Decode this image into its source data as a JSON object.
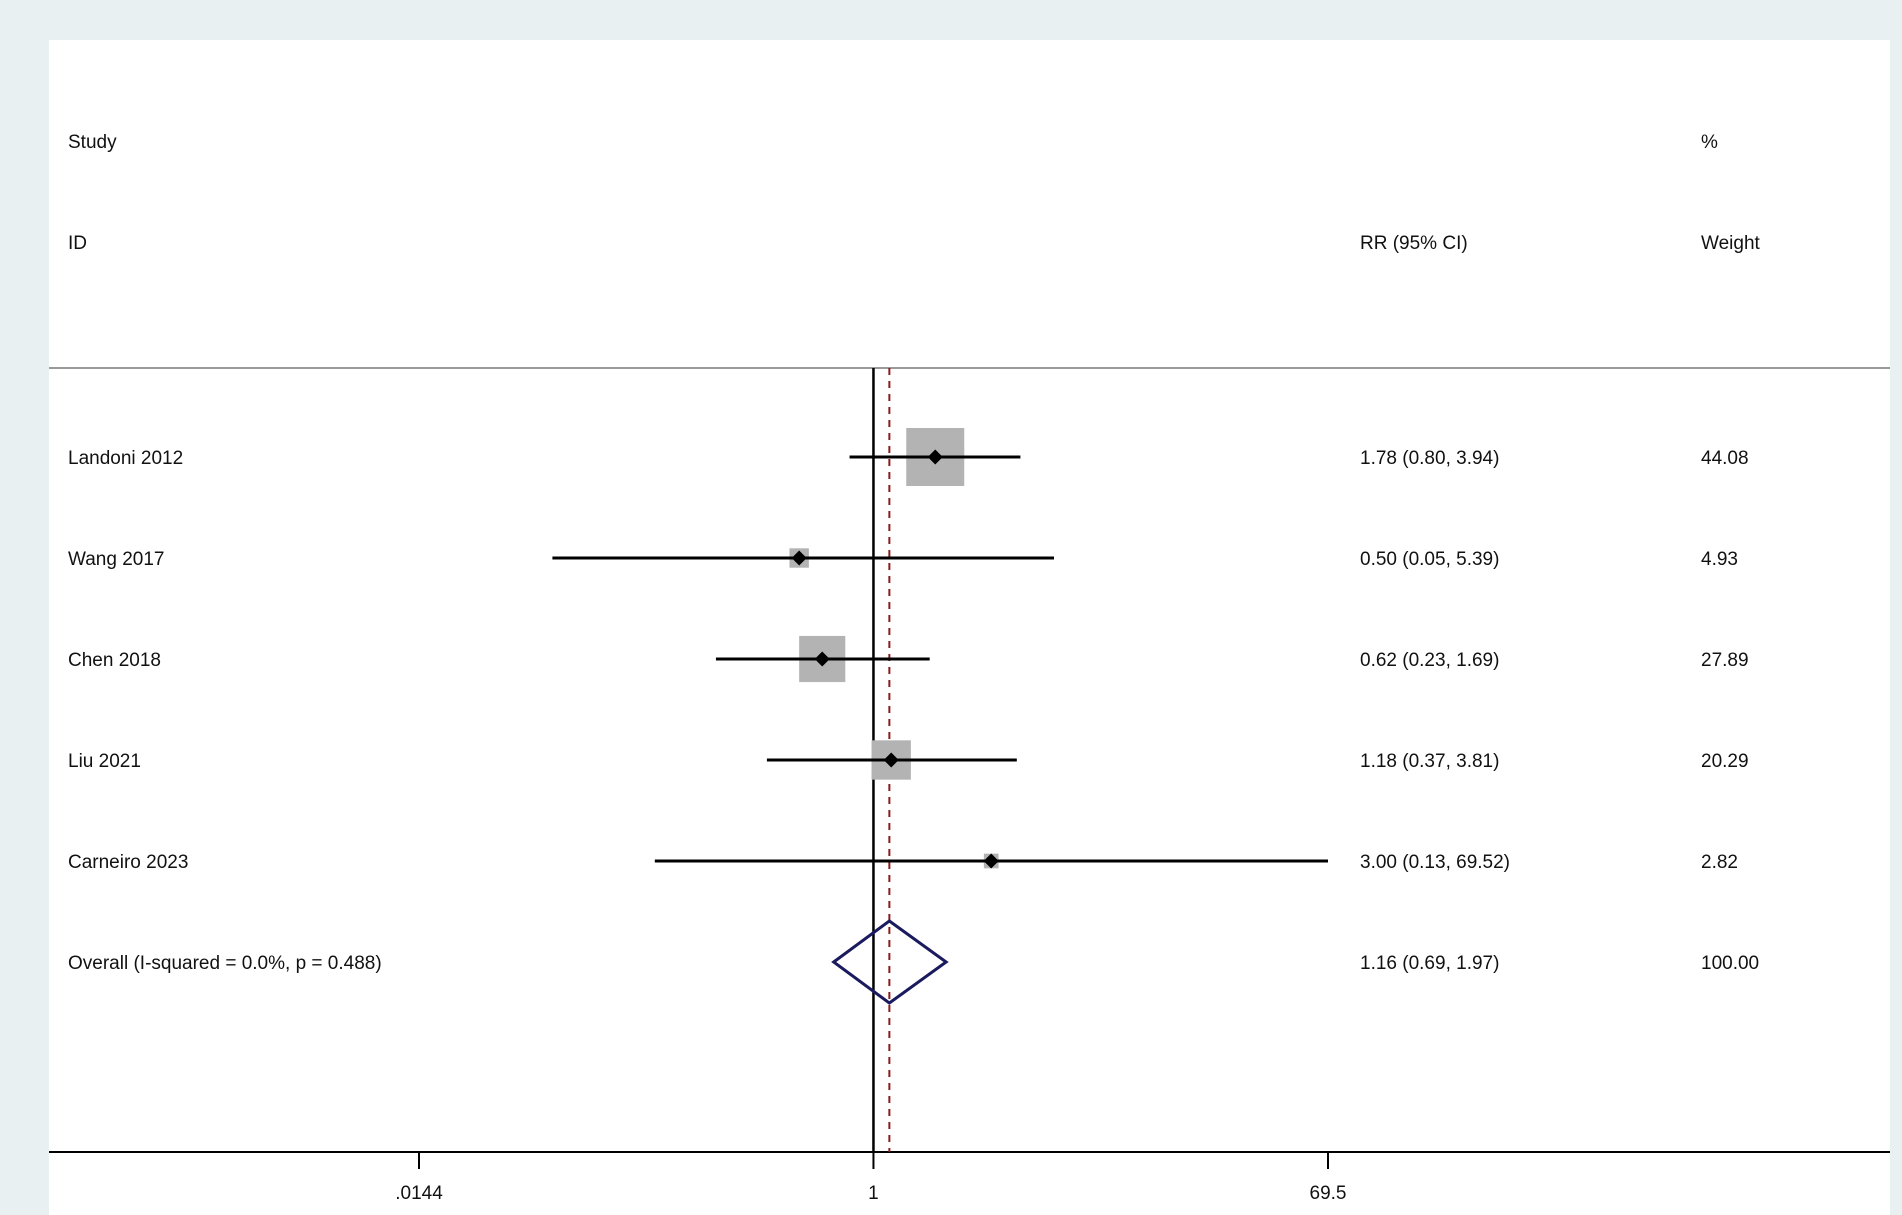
{
  "chart_data": {
    "type": "forest",
    "headers": {
      "study": "Study",
      "id": "ID",
      "estimate": "RR (95% CI)",
      "weight_pct": "%",
      "weight": "Weight"
    },
    "studies": [
      {
        "id": "Landoni 2012",
        "rr": 1.78,
        "lo": 0.8,
        "hi": 3.94,
        "ci_text": "1.78 (0.80, 3.94)",
        "weight": 44.08,
        "weight_text": "44.08"
      },
      {
        "id": "Wang 2017",
        "rr": 0.5,
        "lo": 0.05,
        "hi": 5.39,
        "ci_text": "0.50 (0.05, 5.39)",
        "weight": 4.93,
        "weight_text": "4.93"
      },
      {
        "id": "Chen 2018",
        "rr": 0.62,
        "lo": 0.23,
        "hi": 1.69,
        "ci_text": "0.62 (0.23, 1.69)",
        "weight": 27.89,
        "weight_text": "27.89"
      },
      {
        "id": "Liu 2021",
        "rr": 1.18,
        "lo": 0.37,
        "hi": 3.81,
        "ci_text": "1.18 (0.37, 3.81)",
        "weight": 20.29,
        "weight_text": "20.29"
      },
      {
        "id": "Carneiro 2023",
        "rr": 3.0,
        "lo": 0.13,
        "hi": 69.52,
        "ci_text": "3.00 (0.13, 69.52)",
        "weight": 2.82,
        "weight_text": "2.82"
      }
    ],
    "overall": {
      "id": "Overall  (I-squared = 0.0%, p = 0.488)",
      "rr": 1.16,
      "lo": 0.69,
      "hi": 1.97,
      "ci_text": "1.16 (0.69, 1.97)",
      "weight_text": "100.00"
    },
    "x_scale": "log",
    "x_ticks": [
      {
        "value": 0.0144,
        "label": ".0144"
      },
      {
        "value": 1,
        "label": "1"
      },
      {
        "value": 69.5,
        "label": "69.5"
      }
    ],
    "xlim": [
      0.0144,
      69.5
    ],
    "null_line": 1,
    "colors": {
      "weight_box": "#b3b3b3",
      "point": "#000000",
      "ci_line": "#000000",
      "diamond": "#1a1a5e",
      "overall_line": "#8b1a1a",
      "null_line": "#000000"
    }
  }
}
